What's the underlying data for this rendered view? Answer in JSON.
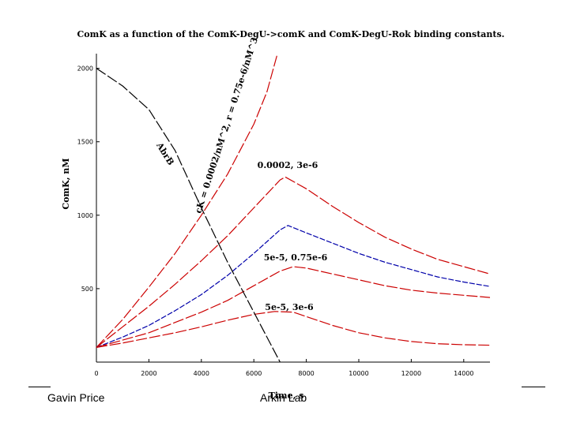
{
  "footer": {
    "author": "Gavin Price",
    "lab": "Arkin Lab"
  },
  "chart_data": {
    "type": "line",
    "title": "ComK as a function of the ComK-DegU->comK and ComK-DegU-Rok binding constants.",
    "xlabel": "Time, s",
    "ylabel": "ComK, nM",
    "xlim": [
      0,
      15000
    ],
    "ylim": [
      0,
      2100
    ],
    "x_ticks": [
      0,
      2000,
      4000,
      6000,
      8000,
      10000,
      12000,
      14000
    ],
    "y_ticks": [
      500,
      1000,
      1500,
      2000
    ],
    "grid": false,
    "series": [
      {
        "name": "cK = 0.0002/nM^2, r = 0.75e-6/nM^3",
        "color": "#cc0000",
        "dash": "long",
        "x": [
          0,
          1000,
          2000,
          3000,
          4000,
          5000,
          6000,
          6500,
          6900
        ],
        "y": [
          100,
          290,
          510,
          740,
          1000,
          1280,
          1620,
          1840,
          2100
        ]
      },
      {
        "name": "0.0002, 3e-6",
        "color": "#cc0000",
        "dash": "long",
        "x": [
          0,
          1000,
          2000,
          3000,
          4000,
          5000,
          6000,
          7000,
          7200,
          8000,
          9000,
          10000,
          11000,
          12000,
          13000,
          14000,
          15000
        ],
        "y": [
          100,
          240,
          380,
          530,
          690,
          860,
          1050,
          1240,
          1260,
          1180,
          1060,
          950,
          850,
          770,
          700,
          650,
          600
        ]
      },
      {
        "name": "",
        "color": "#0000aa",
        "dash": "medium",
        "x": [
          0,
          1000,
          2000,
          3000,
          4000,
          5000,
          6000,
          7000,
          7300,
          8000,
          9000,
          10000,
          11000,
          12000,
          13000,
          14000,
          15000
        ],
        "y": [
          100,
          170,
          250,
          350,
          460,
          590,
          740,
          900,
          930,
          880,
          810,
          740,
          680,
          630,
          580,
          545,
          515
        ]
      },
      {
        "name": "5e-5, 0.75e-6",
        "color": "#cc0000",
        "dash": "long",
        "x": [
          0,
          1000,
          2000,
          3000,
          4000,
          5000,
          6000,
          7000,
          7500,
          8000,
          9000,
          10000,
          11000,
          12000,
          13000,
          14000,
          15000
        ],
        "y": [
          100,
          150,
          200,
          270,
          340,
          420,
          520,
          620,
          650,
          640,
          600,
          560,
          520,
          490,
          470,
          455,
          440
        ]
      },
      {
        "name": "5e-5, 3e-6",
        "color": "#cc0000",
        "dash": "long",
        "x": [
          0,
          1000,
          2000,
          3000,
          4000,
          5000,
          6000,
          6800,
          7500,
          8000,
          9000,
          10000,
          11000,
          12000,
          13000,
          14000,
          15000
        ],
        "y": [
          100,
          130,
          165,
          200,
          240,
          285,
          325,
          345,
          340,
          310,
          250,
          200,
          165,
          140,
          125,
          118,
          115
        ]
      },
      {
        "name": "AbrB",
        "color": "#000000",
        "dash": "long",
        "x": [
          0,
          1000,
          2000,
          3000,
          4000,
          5000,
          6000,
          7000
        ],
        "y": [
          2000,
          1880,
          1720,
          1440,
          1050,
          680,
          340,
          0
        ]
      }
    ],
    "annotations": [
      {
        "text": "cK = 0.0002/nM^2, r = 0.75e-6/nM^3"
      },
      {
        "text": "AbrB"
      },
      {
        "text": "0.0002, 3e-6"
      },
      {
        "text": "5e-5, 0.75e-6"
      },
      {
        "text": "5e-5, 3e-6"
      }
    ],
    "legend": "none"
  }
}
